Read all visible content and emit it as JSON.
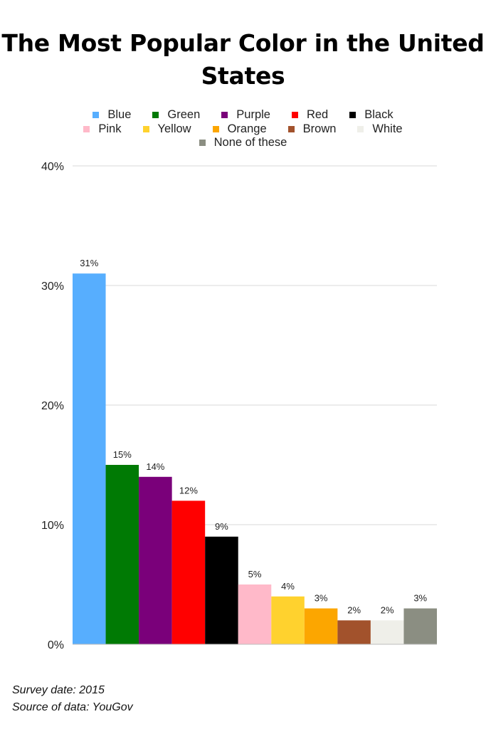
{
  "chart_data": {
    "type": "bar",
    "title": "The Most Popular Color in the United States",
    "categories": [
      "Blue",
      "Green",
      "Purple",
      "Red",
      "Black",
      "Pink",
      "Yellow",
      "Orange",
      "Brown",
      "White",
      "None of these"
    ],
    "values": [
      31,
      15,
      14,
      12,
      9,
      5,
      4,
      3,
      2,
      2,
      3
    ],
    "data_labels": [
      "31%",
      "15%",
      "14%",
      "12%",
      "9%",
      "5%",
      "4%",
      "3%",
      "2%",
      "2%",
      "3%"
    ],
    "colors": [
      "#57aefe",
      "#007a04",
      "#7a007a",
      "#ff0000",
      "#000000",
      "#ffb9c9",
      "#ffd22e",
      "#fca600",
      "#a2522c",
      "#efefe9",
      "#8b8e82"
    ],
    "ylim": [
      0,
      40
    ],
    "yticks": [
      "0%",
      "10%",
      "20%",
      "30%",
      "40%"
    ],
    "grid": true,
    "legend_position": "top"
  },
  "legend_rows": [
    [
      {
        "label": "Blue",
        "color": "#57aefe"
      },
      {
        "label": "Green",
        "color": "#007a04"
      },
      {
        "label": "Purple",
        "color": "#7a007a"
      },
      {
        "label": "Red",
        "color": "#ff0000"
      },
      {
        "label": "Black",
        "color": "#000000"
      }
    ],
    [
      {
        "label": "Pink",
        "color": "#ffb9c9"
      },
      {
        "label": "Yellow",
        "color": "#ffd22e"
      },
      {
        "label": "Orange",
        "color": "#fca600"
      },
      {
        "label": "Brown",
        "color": "#a2522c"
      },
      {
        "label": "White",
        "color": "#efefe9"
      }
    ],
    [
      {
        "label": "None of these",
        "color": "#8b8e82"
      }
    ]
  ],
  "footnotes": {
    "survey_date": "Survey date: 2015",
    "source": "Source of data: YouGov"
  }
}
